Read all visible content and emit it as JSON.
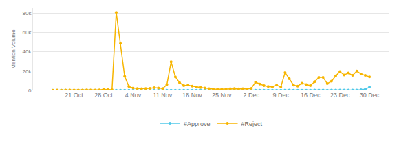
{
  "chart_data": {
    "type": "line",
    "y_label": "Mention Volume",
    "categories": [
      null,
      null,
      null,
      null,
      null,
      "21 Oct",
      null,
      null,
      null,
      null,
      null,
      null,
      "28 Oct",
      null,
      null,
      null,
      null,
      null,
      null,
      "4 Nov",
      null,
      null,
      null,
      null,
      null,
      null,
      "11 Nov",
      null,
      null,
      null,
      null,
      null,
      null,
      "18 Nov",
      null,
      null,
      null,
      null,
      null,
      null,
      "25 Nov",
      null,
      null,
      null,
      null,
      null,
      null,
      "2 Dec",
      null,
      null,
      null,
      null,
      null,
      null,
      "9 Dec",
      null,
      null,
      null,
      null,
      null,
      null,
      "16 Dec",
      null,
      null,
      null,
      null,
      null,
      null,
      "23 Dec",
      null,
      null,
      null,
      null,
      null,
      null,
      "30 Dec"
    ],
    "series": [
      {
        "name": "#Approve",
        "color": "#4fc8e8",
        "marker": "circle",
        "values": [
          100,
          100,
          100,
          100,
          100,
          100,
          100,
          100,
          100,
          100,
          100,
          100,
          100,
          100,
          100,
          150,
          150,
          150,
          150,
          150,
          150,
          150,
          150,
          150,
          150,
          150,
          150,
          150,
          200,
          150,
          150,
          150,
          150,
          150,
          150,
          150,
          150,
          150,
          150,
          150,
          150,
          150,
          150,
          150,
          150,
          150,
          200,
          200,
          200,
          200,
          200,
          200,
          200,
          200,
          200,
          300,
          300,
          200,
          200,
          200,
          200,
          200,
          300,
          300,
          300,
          200,
          300,
          300,
          300,
          400,
          400,
          400,
          400,
          700,
          1200,
          3500
        ]
      },
      {
        "name": "#Reject",
        "color": "#f7b500",
        "marker": "circle",
        "values": [
          200,
          300,
          250,
          300,
          400,
          350,
          300,
          400,
          500,
          450,
          400,
          600,
          1000,
          800,
          700,
          80500,
          48500,
          14500,
          4000,
          2500,
          2000,
          1800,
          2000,
          2200,
          2800,
          2500,
          2000,
          6000,
          29500,
          14000,
          8000,
          5000,
          5500,
          4500,
          3500,
          3000,
          2500,
          1800,
          1500,
          1200,
          1300,
          1500,
          1800,
          2000,
          1600,
          1800,
          1500,
          2200,
          8500,
          6500,
          5000,
          4000,
          3500,
          5500,
          3500,
          18500,
          12000,
          5500,
          4500,
          7500,
          6000,
          5000,
          9000,
          13500,
          13500,
          7000,
          9500,
          15000,
          19500,
          16000,
          18000,
          15500,
          20000,
          17000,
          15500,
          14000
        ]
      }
    ],
    "ylim": [
      0,
      85000
    ],
    "yticks": [
      0,
      {
        "value": 20000,
        "label": "20k"
      },
      {
        "value": 40000,
        "label": "40k"
      },
      {
        "value": 60000,
        "label": "60k"
      },
      {
        "value": 80000,
        "label": "80k"
      }
    ],
    "grid": true,
    "legend": "bottom"
  }
}
